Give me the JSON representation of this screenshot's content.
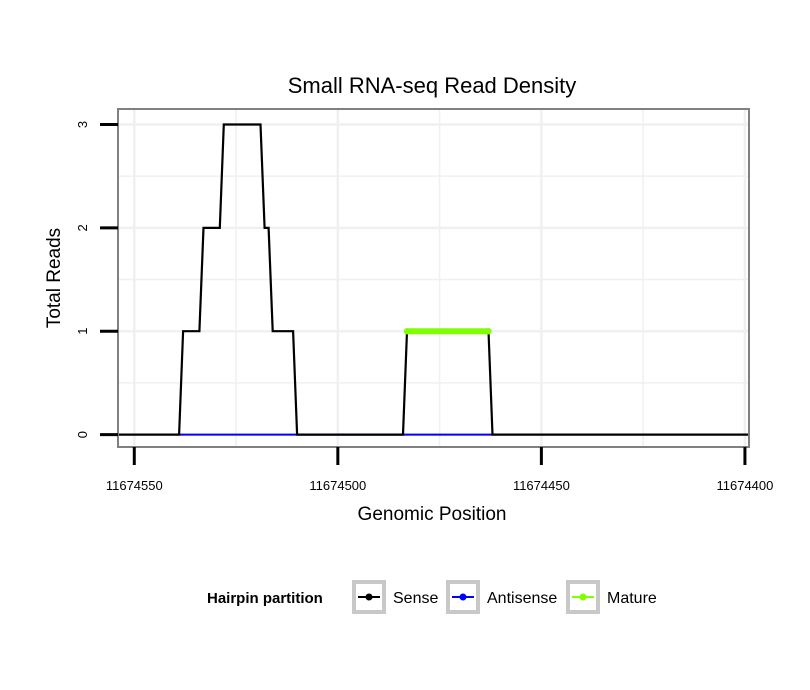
{
  "chart_data": {
    "type": "line",
    "title": "Small RNA-seq Read Density",
    "xlabel": "Genomic Position",
    "ylabel": "Total Reads",
    "x_reversed": true,
    "xlim": [
      11674554,
      11674399
    ],
    "ylim": [
      -0.12,
      3.15
    ],
    "x_ticks": [
      11674550,
      11674500,
      11674450,
      11674400
    ],
    "x_tick_labels": [
      "11674550",
      "11674500",
      "11674450",
      "11674400"
    ],
    "y_ticks": [
      0,
      1,
      2,
      3
    ],
    "y_tick_labels": [
      "0",
      "1",
      "2",
      "3"
    ],
    "grid": true,
    "legend": {
      "title": "Hairpin partition",
      "placement": "bottom",
      "entries": [
        {
          "name": "Sense",
          "color": "#000000"
        },
        {
          "name": "Antisense",
          "color": "#0000ff"
        },
        {
          "name": "Mature",
          "color": "#7fff00"
        }
      ]
    },
    "series": [
      {
        "name": "Sense",
        "color": "#000000",
        "points": [
          [
            11674554,
            0
          ],
          [
            11674539,
            0
          ],
          [
            11674538,
            1
          ],
          [
            11674534,
            1
          ],
          [
            11674533,
            2
          ],
          [
            11674529,
            2
          ],
          [
            11674528,
            3
          ],
          [
            11674519,
            3
          ],
          [
            11674518,
            2
          ],
          [
            11674517,
            2
          ],
          [
            11674516,
            1
          ],
          [
            11674511,
            1
          ],
          [
            11674510,
            0
          ],
          [
            11674484,
            0
          ],
          [
            11674483,
            1
          ],
          [
            11674463,
            1
          ],
          [
            11674462,
            0
          ],
          [
            11674399,
            0
          ]
        ]
      },
      {
        "name": "Antisense",
        "color": "#0000ff",
        "points": [
          [
            11674539,
            0
          ],
          [
            11674510,
            0
          ],
          [
            11674484,
            0
          ],
          [
            11674462,
            0
          ]
        ]
      },
      {
        "name": "Mature",
        "color": "#7fff00",
        "points": [
          [
            11674483,
            1
          ],
          [
            11674463,
            1
          ]
        ]
      }
    ]
  }
}
